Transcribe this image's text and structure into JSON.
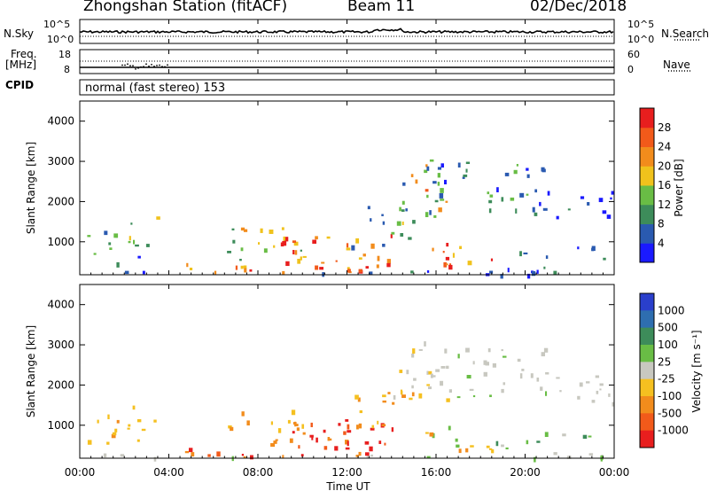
{
  "header": {
    "station": "Zhongshan Station (fitACF)",
    "beam": "Beam 11",
    "date": "02/Dec/2018"
  },
  "panels": {
    "nsky": {
      "label": "N.Sky",
      "ticks": [
        "10^5",
        "10^0"
      ]
    },
    "nsearch": {
      "label": "N.Search",
      "ticks": [
        "10^5",
        "10^0"
      ]
    },
    "freq": {
      "label_top": "Freq.",
      "label_unit": "[MHz]",
      "ticks": [
        "18",
        "8"
      ]
    },
    "nave": {
      "label": "Nave",
      "ticks": [
        "60",
        "0"
      ]
    },
    "cpid": {
      "label": "CPID",
      "program": "normal (fast stereo) 153"
    }
  },
  "chart_data": [
    {
      "type": "heatmap",
      "name": "power",
      "ylabel": "Slant Range [km]",
      "yticks": [
        "1000",
        "2000",
        "3000",
        "4000"
      ],
      "ylim": [
        180,
        4500
      ],
      "xlim": [
        0,
        24
      ],
      "colorbar": {
        "label": "Power [dB]",
        "ticks": [
          "4",
          "8",
          "12",
          "16",
          "20",
          "24",
          "28"
        ],
        "colors": [
          "#1a1aff",
          "#2a5ab0",
          "#3d8c5a",
          "#69bd45",
          "#f0c21c",
          "#f28c1c",
          "#f25a1a",
          "#e81e1e"
        ]
      }
    },
    {
      "type": "heatmap",
      "name": "velocity",
      "ylabel": "Slant Range [km]",
      "yticks": [
        "1000",
        "2000",
        "3000",
        "4000"
      ],
      "ylim": [
        180,
        4500
      ],
      "xlim": [
        0,
        24
      ],
      "xlabel": "Time UT",
      "xticks": [
        "00:00",
        "04:00",
        "08:00",
        "12:00",
        "16:00",
        "20:00",
        "00:00"
      ],
      "colorbar": {
        "label": "Velocity [m s⁻¹]",
        "ticks": [
          "1000",
          "500",
          "100",
          "25",
          "-25",
          "-100",
          "-500",
          "-1000"
        ],
        "colors": [
          "#2a3fcc",
          "#2e6eb0",
          "#3d8c5a",
          "#69bd45",
          "#c8c8c0",
          "#f5c020",
          "#f28c1c",
          "#f25a1a",
          "#e81e1e"
        ]
      }
    }
  ]
}
